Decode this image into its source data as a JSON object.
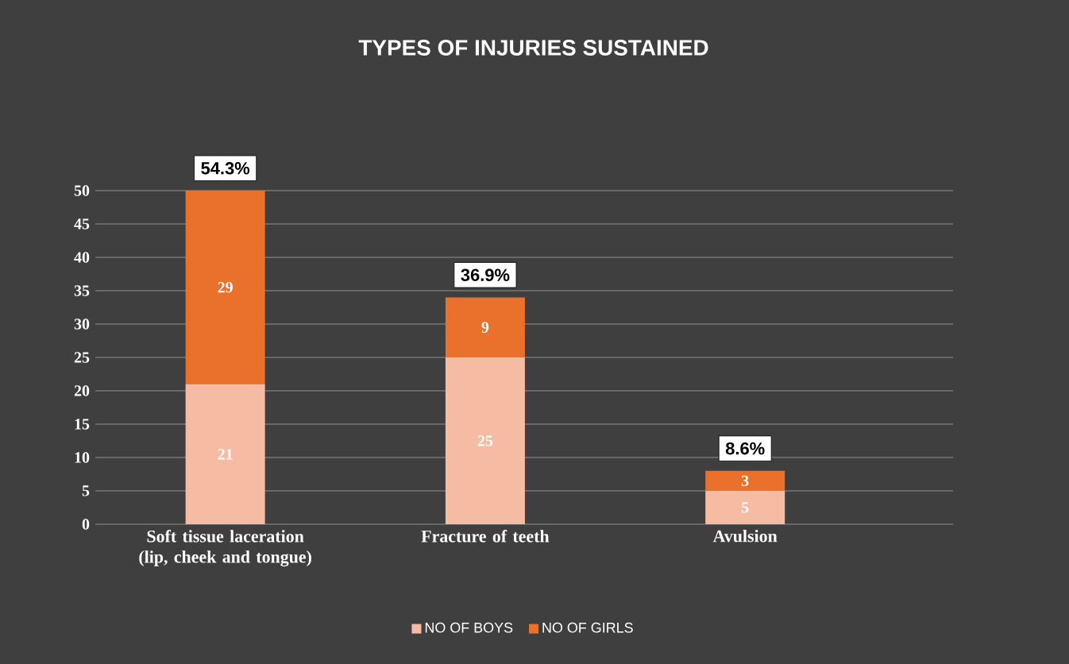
{
  "chart_data": {
    "type": "bar",
    "title": "TYPES OF INJURIES SUSTAINED",
    "stacked": true,
    "categories": [
      "Soft tissue laceration (lip, cheek and tongue)",
      "Fracture of teeth",
      "Avulsion"
    ],
    "series": [
      {
        "name": "NO OF BOYS",
        "color": "#f5bba3",
        "values": [
          21,
          25,
          5
        ]
      },
      {
        "name": "NO OF GIRLS",
        "color": "#e9712c",
        "values": [
          29,
          9,
          3
        ]
      }
    ],
    "annotations": [
      {
        "text": "54.3%",
        "x": "Soft tissue laceration (lip, cheek and tongue)",
        "y": 50
      },
      {
        "text": "36.9%",
        "x": "Fracture of teeth",
        "y": 34
      },
      {
        "text": "8.6%",
        "x": "Avulsion",
        "y": 8
      }
    ],
    "data_labels": true,
    "ylim": [
      0,
      55
    ],
    "yticks": [
      0,
      5,
      10,
      15,
      20,
      25,
      30,
      35,
      40,
      45,
      50
    ],
    "grid": "y",
    "legend": "bottom"
  }
}
